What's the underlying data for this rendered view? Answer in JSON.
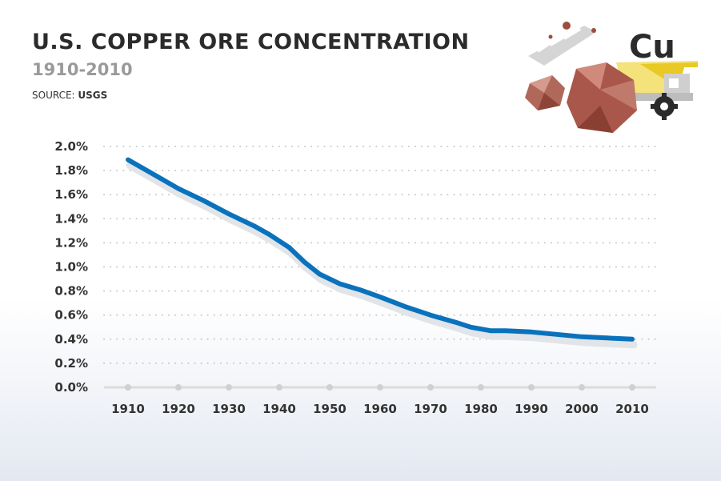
{
  "header": {
    "title": "U.S. COPPER ORE CONCENTRATION",
    "subtitle": "1910-2010",
    "source_label": "SOURCE:",
    "source_value": "USGS"
  },
  "illustration": {
    "element_symbol": "Cu",
    "icons": [
      "rock-icon",
      "dump-truck-icon",
      "gear-icon",
      "drill-bit-icon"
    ],
    "colors": {
      "truck": "#f2d23a",
      "rock": "#a9574a",
      "gray": "#cfcfcf",
      "dark": "#2b2b2b"
    }
  },
  "chart_data": {
    "type": "line",
    "title": "U.S. COPPER ORE CONCENTRATION",
    "subtitle": "1910-2010",
    "xlabel": "",
    "ylabel": "",
    "x_ticks": [
      "1910",
      "1920",
      "1930",
      "1940",
      "1950",
      "1960",
      "1970",
      "1980",
      "1990",
      "2000",
      "2010"
    ],
    "y_ticks": [
      "0.0%",
      "0.2%",
      "0.4%",
      "0.6%",
      "0.8%",
      "1.0%",
      "1.2%",
      "1.4%",
      "1.6%",
      "1.8%",
      "2.0%"
    ],
    "xlim": [
      1910,
      2010
    ],
    "ylim": [
      0,
      2.0
    ],
    "grid": "horizontal dotted",
    "line_color": "#0a72bc",
    "series": [
      {
        "x": [
          1910,
          1915,
          1920,
          1925,
          1930,
          1935,
          1938,
          1942,
          1945,
          1948,
          1952,
          1956,
          1960,
          1965,
          1970,
          1975,
          1978,
          1982,
          1985,
          1990,
          1995,
          2000,
          2005,
          2010
        ],
        "y": [
          1.89,
          1.77,
          1.65,
          1.55,
          1.44,
          1.34,
          1.27,
          1.16,
          1.04,
          0.94,
          0.86,
          0.81,
          0.75,
          0.67,
          0.6,
          0.54,
          0.5,
          0.47,
          0.47,
          0.46,
          0.44,
          0.42,
          0.41,
          0.4
        ]
      }
    ]
  }
}
